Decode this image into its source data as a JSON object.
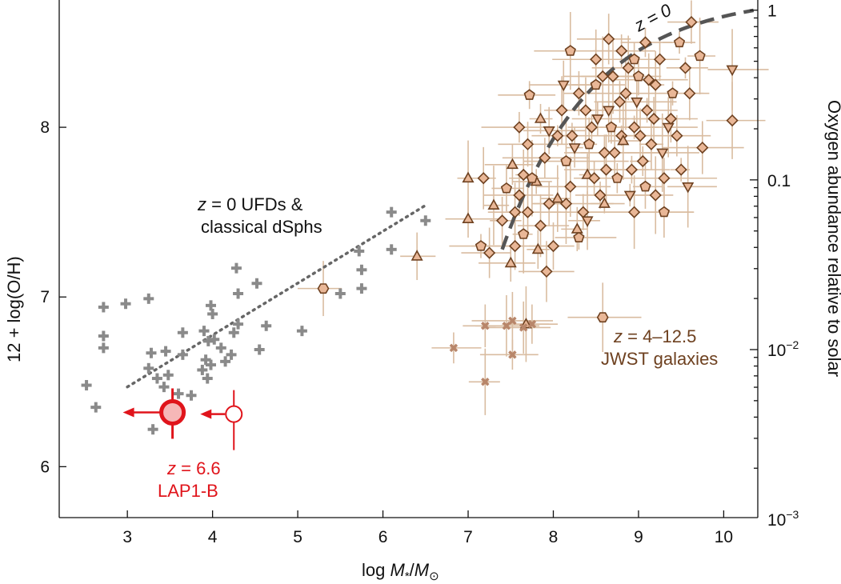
{
  "chart_data": {
    "type": "scatter",
    "title": "",
    "xlabel": {
      "prefix": "log ",
      "var": "M",
      "sub": "*",
      "sep": "/",
      "var2": "M",
      "sub2": "⊙"
    },
    "ylabel": "12 + log(O/H)",
    "y2label": "Oxygen abundance relative to solar",
    "xlim": [
      2.2,
      10.4
    ],
    "ylim": [
      5.7,
      8.75
    ],
    "xticks": [
      "3",
      "4",
      "5",
      "6",
      "7",
      "8",
      "9",
      "10"
    ],
    "yticks": [
      "6",
      "7",
      "8"
    ],
    "y2ticks": [
      {
        "base": "1",
        "exp": "",
        "value": 0
      },
      {
        "base": "0.1",
        "exp": "",
        "value": -1
      },
      {
        "base": "10",
        "exp": "−2",
        "value": -2
      },
      {
        "base": "10",
        "exp": "−3",
        "value": -3
      }
    ],
    "solar_offset": 8.69,
    "colors": {
      "jwst_fill": "#e9b797",
      "jwst_edge": "#6e4120",
      "jwst_err": "#d9bca0",
      "local": "#8a8a8a",
      "lap1": "#e0141b",
      "lap1_fill": "#f6b7b7",
      "relation": "#555555",
      "dotted": "#666666",
      "jwst_text": "#6e4120"
    },
    "annotations": {
      "z0_relation": "z = 0",
      "ufd_line1": {
        "var": "z",
        "rest": " = 0 UFDs &"
      },
      "ufd_line2": "classical dSphs",
      "jwst_line1": {
        "var": "z",
        "rest": " = 4–12.5"
      },
      "jwst_line2": "JWST galaxies",
      "lap1_line1": {
        "var": "z",
        "rest": " = 6.6"
      },
      "lap1_line2": "LAP1-B"
    },
    "series": [
      {
        "name": "LAP1-B",
        "marker": "big-circle-upper-limit",
        "points": [
          {
            "x": 3.53,
            "y": 6.32
          },
          {
            "x": 4.25,
            "y": 6.31,
            "open": true,
            "yerr": 0.18
          }
        ]
      },
      {
        "name": "z = 0 UFDs & classical dSphs",
        "marker": "plus",
        "points": [
          {
            "x": 2.52,
            "y": 6.48
          },
          {
            "x": 2.63,
            "y": 6.35
          },
          {
            "x": 2.72,
            "y": 6.94
          },
          {
            "x": 2.72,
            "y": 6.77
          },
          {
            "x": 2.72,
            "y": 6.7
          },
          {
            "x": 2.98,
            "y": 6.96
          },
          {
            "x": 3.25,
            "y": 6.99
          },
          {
            "x": 3.25,
            "y": 6.58
          },
          {
            "x": 3.28,
            "y": 6.67
          },
          {
            "x": 3.3,
            "y": 6.22
          },
          {
            "x": 3.35,
            "y": 6.52
          },
          {
            "x": 3.43,
            "y": 6.47
          },
          {
            "x": 3.45,
            "y": 6.68
          },
          {
            "x": 3.48,
            "y": 6.54
          },
          {
            "x": 3.6,
            "y": 6.43
          },
          {
            "x": 3.65,
            "y": 6.66
          },
          {
            "x": 3.65,
            "y": 6.79
          },
          {
            "x": 3.75,
            "y": 6.42
          },
          {
            "x": 3.88,
            "y": 6.57
          },
          {
            "x": 3.9,
            "y": 6.8
          },
          {
            "x": 3.92,
            "y": 6.63
          },
          {
            "x": 3.94,
            "y": 6.52
          },
          {
            "x": 3.95,
            "y": 6.74
          },
          {
            "x": 3.98,
            "y": 6.95
          },
          {
            "x": 4.0,
            "y": 6.9
          },
          {
            "x": 3.98,
            "y": 6.6
          },
          {
            "x": 4.02,
            "y": 6.75
          },
          {
            "x": 4.1,
            "y": 6.7
          },
          {
            "x": 4.15,
            "y": 6.62
          },
          {
            "x": 4.22,
            "y": 6.66
          },
          {
            "x": 4.25,
            "y": 6.79
          },
          {
            "x": 4.28,
            "y": 7.17
          },
          {
            "x": 4.3,
            "y": 6.84
          },
          {
            "x": 4.3,
            "y": 7.02
          },
          {
            "x": 4.52,
            "y": 7.08
          },
          {
            "x": 4.55,
            "y": 6.69
          },
          {
            "x": 4.63,
            "y": 6.83
          },
          {
            "x": 5.05,
            "y": 6.8
          },
          {
            "x": 5.5,
            "y": 7.02
          },
          {
            "x": 5.72,
            "y": 7.27
          },
          {
            "x": 5.75,
            "y": 7.16
          },
          {
            "x": 5.75,
            "y": 7.05
          },
          {
            "x": 6.1,
            "y": 7.5
          },
          {
            "x": 6.1,
            "y": 7.28
          },
          {
            "x": 6.5,
            "y": 7.45
          }
        ]
      },
      {
        "name": "z = 4–12.5 JWST galaxies",
        "marker": "mixed",
        "points": [
          {
            "x": 5.3,
            "y": 7.05,
            "m": "h"
          },
          {
            "x": 6.4,
            "y": 7.24,
            "m": "t"
          },
          {
            "x": 7.0,
            "y": 7.7,
            "m": "t"
          },
          {
            "x": 7.0,
            "y": 7.46,
            "m": "t"
          },
          {
            "x": 7.15,
            "y": 7.3,
            "m": "p"
          },
          {
            "x": 7.18,
            "y": 7.7,
            "m": "d"
          },
          {
            "x": 7.25,
            "y": 7.26,
            "m": "d"
          },
          {
            "x": 7.3,
            "y": 7.54,
            "m": "t"
          },
          {
            "x": 7.4,
            "y": 7.45,
            "m": "d"
          },
          {
            "x": 7.45,
            "y": 7.64,
            "m": "p"
          },
          {
            "x": 7.5,
            "y": 7.2,
            "m": "t"
          },
          {
            "x": 7.55,
            "y": 7.3,
            "m": "d"
          },
          {
            "x": 7.52,
            "y": 7.78,
            "m": "t"
          },
          {
            "x": 7.6,
            "y": 7.6,
            "m": "d"
          },
          {
            "x": 7.65,
            "y": 7.37,
            "m": "p"
          },
          {
            "x": 7.7,
            "y": 7.5,
            "m": "d"
          },
          {
            "x": 7.7,
            "y": 7.9,
            "m": "d"
          },
          {
            "x": 7.72,
            "y": 8.19,
            "m": "p"
          },
          {
            "x": 7.8,
            "y": 7.68,
            "m": "t"
          },
          {
            "x": 7.85,
            "y": 7.42,
            "m": "d"
          },
          {
            "x": 7.9,
            "y": 7.82,
            "m": "d"
          },
          {
            "x": 7.95,
            "y": 7.98,
            "m": "v"
          },
          {
            "x": 8.0,
            "y": 7.3,
            "m": "d"
          },
          {
            "x": 8.05,
            "y": 7.58,
            "m": "t"
          },
          {
            "x": 8.1,
            "y": 8.1,
            "m": "d"
          },
          {
            "x": 8.15,
            "y": 7.8,
            "m": "p"
          },
          {
            "x": 8.2,
            "y": 7.65,
            "m": "d"
          },
          {
            "x": 8.25,
            "y": 7.88,
            "m": "v"
          },
          {
            "x": 8.3,
            "y": 8.2,
            "m": "d"
          },
          {
            "x": 8.35,
            "y": 7.5,
            "m": "d"
          },
          {
            "x": 8.4,
            "y": 7.72,
            "m": "t"
          },
          {
            "x": 8.45,
            "y": 8.0,
            "m": "d"
          },
          {
            "x": 8.5,
            "y": 8.25,
            "m": "p"
          },
          {
            "x": 8.55,
            "y": 7.6,
            "m": "d"
          },
          {
            "x": 8.6,
            "y": 7.85,
            "m": "d"
          },
          {
            "x": 8.65,
            "y": 8.1,
            "m": "v"
          },
          {
            "x": 8.7,
            "y": 8.3,
            "m": "d"
          },
          {
            "x": 8.75,
            "y": 7.7,
            "m": "p"
          },
          {
            "x": 8.8,
            "y": 7.95,
            "m": "d"
          },
          {
            "x": 8.85,
            "y": 8.2,
            "m": "d"
          },
          {
            "x": 8.9,
            "y": 7.6,
            "m": "v"
          },
          {
            "x": 8.95,
            "y": 8.0,
            "m": "d"
          },
          {
            "x": 9.0,
            "y": 8.3,
            "m": "p"
          },
          {
            "x": 9.05,
            "y": 7.8,
            "m": "d"
          },
          {
            "x": 9.1,
            "y": 8.1,
            "m": "d"
          },
          {
            "x": 9.15,
            "y": 7.9,
            "m": "d"
          },
          {
            "x": 9.2,
            "y": 8.25,
            "m": "d"
          },
          {
            "x": 9.3,
            "y": 7.7,
            "m": "d"
          },
          {
            "x": 9.35,
            "y": 8.0,
            "m": "v"
          },
          {
            "x": 9.4,
            "y": 8.2,
            "m": "p"
          },
          {
            "x": 9.5,
            "y": 7.75,
            "m": "d"
          },
          {
            "x": 9.55,
            "y": 8.35,
            "m": "d"
          },
          {
            "x": 9.62,
            "y": 8.62,
            "m": "d"
          },
          {
            "x": 9.75,
            "y": 7.88,
            "m": "d"
          },
          {
            "x": 9.72,
            "y": 8.42,
            "m": "p"
          },
          {
            "x": 10.1,
            "y": 8.04,
            "m": "d"
          },
          {
            "x": 10.1,
            "y": 8.34,
            "m": "v"
          },
          {
            "x": 9.3,
            "y": 7.5,
            "m": "p"
          },
          {
            "x": 8.2,
            "y": 8.45,
            "m": "p"
          },
          {
            "x": 8.5,
            "y": 8.4,
            "m": "d"
          },
          {
            "x": 8.3,
            "y": 7.35,
            "m": "p"
          },
          {
            "x": 7.92,
            "y": 7.15,
            "m": "d"
          },
          {
            "x": 8.58,
            "y": 6.88,
            "m": "h"
          },
          {
            "x": 7.68,
            "y": 6.84,
            "m": "t"
          },
          {
            "x": 7.2,
            "y": 6.83,
            "m": "x"
          },
          {
            "x": 7.45,
            "y": 6.83,
            "m": "x"
          },
          {
            "x": 7.52,
            "y": 6.66,
            "m": "x"
          },
          {
            "x": 7.75,
            "y": 6.84,
            "m": "x"
          },
          {
            "x": 7.65,
            "y": 6.82,
            "m": "x"
          },
          {
            "x": 6.83,
            "y": 6.7,
            "m": "x"
          },
          {
            "x": 7.2,
            "y": 6.5,
            "m": "x"
          },
          {
            "x": 7.52,
            "y": 6.86,
            "m": "x"
          },
          {
            "x": 7.6,
            "y": 8.0,
            "m": "d"
          },
          {
            "x": 7.75,
            "y": 7.7,
            "m": "p"
          },
          {
            "x": 7.85,
            "y": 8.05,
            "m": "t"
          },
          {
            "x": 7.95,
            "y": 7.55,
            "m": "d"
          },
          {
            "x": 8.05,
            "y": 7.95,
            "m": "d"
          },
          {
            "x": 8.12,
            "y": 8.25,
            "m": "v"
          },
          {
            "x": 8.22,
            "y": 7.95,
            "m": "d"
          },
          {
            "x": 8.28,
            "y": 7.4,
            "m": "t"
          },
          {
            "x": 8.38,
            "y": 8.1,
            "m": "d"
          },
          {
            "x": 8.42,
            "y": 7.9,
            "m": "p"
          },
          {
            "x": 8.48,
            "y": 7.7,
            "m": "d"
          },
          {
            "x": 8.52,
            "y": 8.05,
            "m": "v"
          },
          {
            "x": 8.58,
            "y": 8.3,
            "m": "d"
          },
          {
            "x": 8.62,
            "y": 7.75,
            "m": "d"
          },
          {
            "x": 8.68,
            "y": 8.0,
            "m": "p"
          },
          {
            "x": 8.72,
            "y": 7.85,
            "m": "d"
          },
          {
            "x": 8.78,
            "y": 8.15,
            "m": "d"
          },
          {
            "x": 8.82,
            "y": 7.92,
            "m": "t"
          },
          {
            "x": 8.88,
            "y": 8.35,
            "m": "d"
          },
          {
            "x": 8.92,
            "y": 7.75,
            "m": "d"
          },
          {
            "x": 8.98,
            "y": 8.15,
            "m": "v"
          },
          {
            "x": 9.02,
            "y": 7.95,
            "m": "d"
          },
          {
            "x": 9.08,
            "y": 7.65,
            "m": "p"
          },
          {
            "x": 9.12,
            "y": 8.28,
            "m": "d"
          },
          {
            "x": 9.18,
            "y": 8.05,
            "m": "d"
          },
          {
            "x": 9.25,
            "y": 8.4,
            "m": "d"
          },
          {
            "x": 9.28,
            "y": 7.85,
            "m": "v"
          },
          {
            "x": 9.38,
            "y": 8.05,
            "m": "d"
          },
          {
            "x": 9.45,
            "y": 7.95,
            "m": "d"
          },
          {
            "x": 9.48,
            "y": 8.5,
            "m": "p"
          },
          {
            "x": 9.58,
            "y": 7.65,
            "m": "v"
          },
          {
            "x": 9.6,
            "y": 8.2,
            "m": "d"
          },
          {
            "x": 9.08,
            "y": 8.5,
            "m": "d"
          },
          {
            "x": 8.95,
            "y": 8.4,
            "m": "p"
          },
          {
            "x": 8.8,
            "y": 8.45,
            "m": "d"
          },
          {
            "x": 8.65,
            "y": 8.52,
            "m": "d"
          },
          {
            "x": 7.65,
            "y": 7.72,
            "m": "d"
          },
          {
            "x": 7.55,
            "y": 7.5,
            "m": "d"
          },
          {
            "x": 7.82,
            "y": 7.28,
            "m": "t"
          },
          {
            "x": 8.15,
            "y": 7.55,
            "m": "d"
          },
          {
            "x": 8.6,
            "y": 7.55,
            "m": "t"
          },
          {
            "x": 8.95,
            "y": 7.5,
            "m": "d"
          },
          {
            "x": 9.2,
            "y": 7.6,
            "m": "d"
          },
          {
            "x": 8.4,
            "y": 7.45,
            "m": "v"
          }
        ]
      }
    ]
  }
}
